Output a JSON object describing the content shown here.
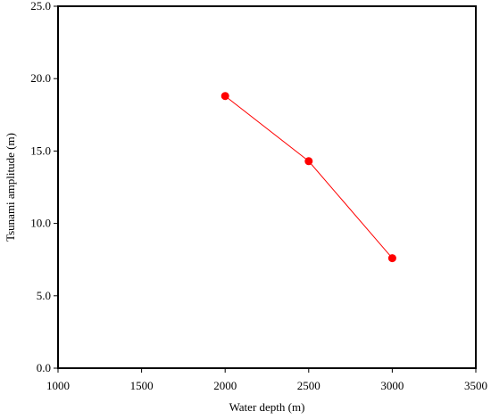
{
  "chart_data": {
    "type": "line",
    "x": [
      2000,
      2500,
      3000
    ],
    "series": [
      {
        "color": "#ff0000",
        "values": [
          18.8,
          14.3,
          7.6
        ]
      }
    ],
    "xlabel": "Water depth (m)",
    "ylabel": "Tsunami amplitude (m)",
    "xlim": [
      1000,
      3500
    ],
    "xticks": [
      1000,
      1500,
      2000,
      2500,
      3000,
      3500
    ],
    "ylim": [
      0,
      25
    ],
    "yticks": [
      {
        "value": 0,
        "label": "0.0"
      },
      {
        "value": 5,
        "label": "5.0"
      },
      {
        "value": 10,
        "label": "10.0"
      },
      {
        "value": 15,
        "label": "15.0"
      },
      {
        "value": 20,
        "label": "20.0"
      },
      {
        "value": 25,
        "label": "25.0"
      }
    ],
    "grid": false
  }
}
